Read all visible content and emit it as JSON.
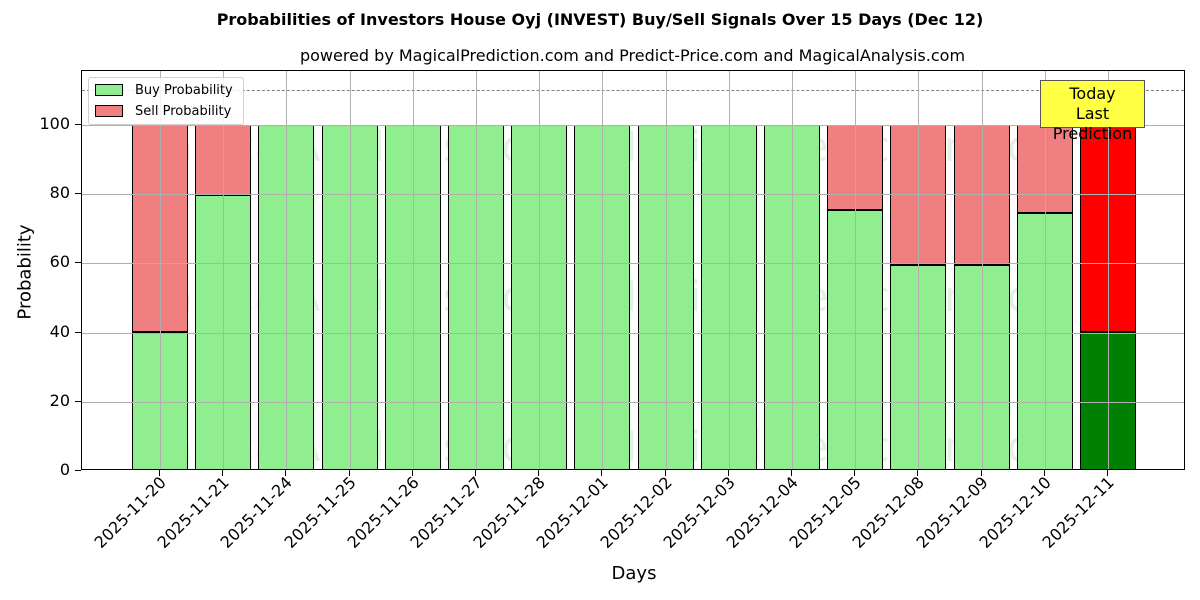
{
  "title": "Probabilities of Investors House Oyj (INVEST) Buy/Sell Signals Over 15 Days (Dec 12)",
  "subtitle": "powered by MagicalPrediction.com and Predict-Price.com and MagicalAnalysis.com",
  "legend": {
    "buy": "Buy Probability",
    "sell": "Sell Probability"
  },
  "annotation": {
    "line1": "Today",
    "line2": "Last Prediction"
  },
  "watermarks": [
    "MagicalAnalysis.com",
    "MagicalPrediction.com"
  ],
  "colors": {
    "buy": "#90ee90",
    "sell": "#f08080",
    "today_buy": "#008000",
    "today_sell": "#ff0000",
    "annotation_bg": "#ffff44"
  },
  "y_ticks": [
    "0",
    "20",
    "40",
    "60",
    "80",
    "100"
  ],
  "chart_data": {
    "type": "bar",
    "stacked": true,
    "title": "Probabilities of Investors House Oyj (INVEST) Buy/Sell Signals Over 15 Days (Dec 12)",
    "subtitle": "powered by MagicalPrediction.com and Predict-Price.com and MagicalAnalysis.com",
    "xlabel": "Days",
    "ylabel": "Probability",
    "ylim": [
      0,
      115
    ],
    "yticks": [
      0,
      20,
      40,
      60,
      80,
      100
    ],
    "reference_line": 110,
    "grid": true,
    "legend_position": "upper left",
    "categories": [
      "2025-11-20",
      "2025-11-21",
      "2025-11-24",
      "2025-11-25",
      "2025-11-26",
      "2025-11-27",
      "2025-11-28",
      "2025-12-01",
      "2025-12-02",
      "2025-12-03",
      "2025-12-04",
      "2025-12-05",
      "2025-12-08",
      "2025-12-09",
      "2025-12-10",
      "2025-12-11"
    ],
    "series": [
      {
        "name": "Buy Probability",
        "values": [
          40.3,
          79.8,
          100,
          100,
          100,
          100,
          100,
          100,
          100,
          100,
          100,
          75.4,
          59.5,
          59.5,
          74.6,
          40.2
        ]
      },
      {
        "name": "Sell Probability",
        "values": [
          59.7,
          20.2,
          0,
          0,
          0,
          0,
          0,
          0,
          0,
          0,
          0,
          24.6,
          40.5,
          40.5,
          25.4,
          59.8
        ]
      }
    ],
    "annotations": [
      {
        "text": "Today\nLast Prediction",
        "x": "2025-12-11"
      }
    ]
  }
}
